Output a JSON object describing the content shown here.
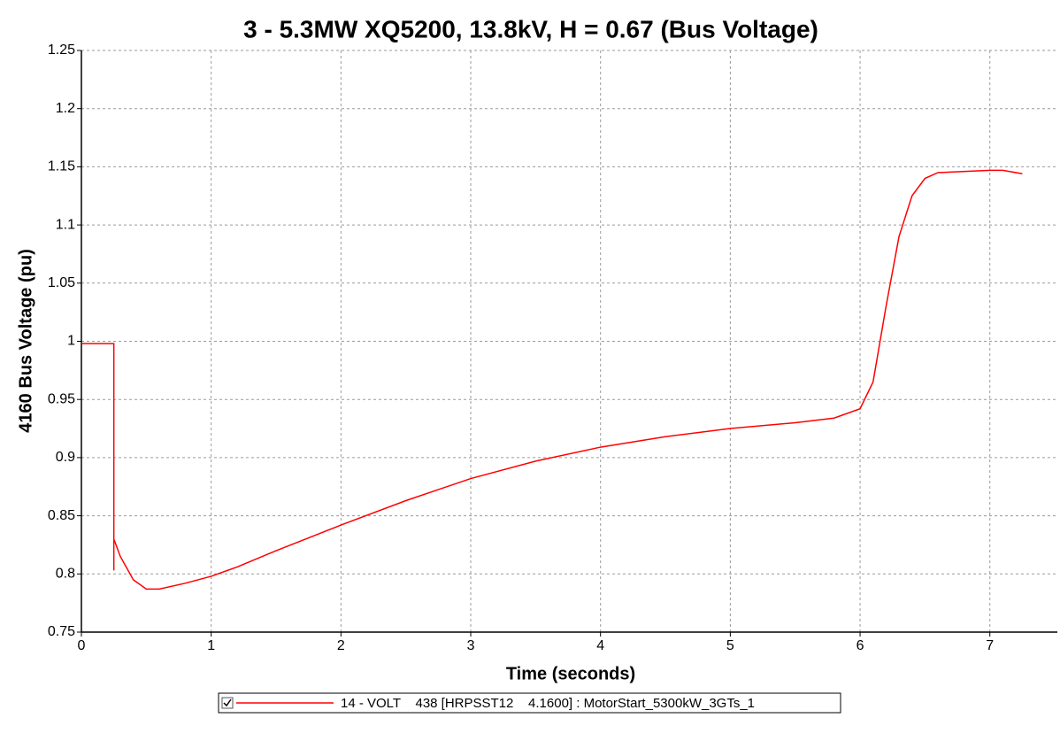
{
  "chart_data": {
    "type": "line",
    "title": "3 - 5.3MW XQ5200, 13.8kV, H = 0.67 (Bus Voltage)",
    "x_label": "Time (seconds)",
    "y_label": "4160 Bus Voltage (pu)",
    "x": [
      0,
      0.25,
      0.25,
      0.25,
      0.3,
      0.4,
      0.5,
      0.6,
      0.8,
      1.0,
      1.2,
      1.5,
      2,
      2.5,
      3,
      3.5,
      4,
      4.5,
      5,
      5.5,
      5.8,
      6.0,
      6.1,
      6.2,
      6.3,
      6.4,
      6.5,
      6.6,
      7.0,
      7.1,
      7.25
    ],
    "series": [
      {
        "name": "14 - VOLT    438 [HRPSST12    4.1600] : MotorStart_5300kW_3GTs_1",
        "color": "#ff0000",
        "values": [
          0.998,
          0.998,
          0.803,
          0.83,
          0.815,
          0.795,
          0.787,
          0.787,
          0.792,
          0.798,
          0.806,
          0.82,
          0.842,
          0.863,
          0.882,
          0.897,
          0.909,
          0.918,
          0.925,
          0.93,
          0.934,
          0.942,
          0.965,
          1.03,
          1.09,
          1.125,
          1.14,
          1.145,
          1.147,
          1.147,
          1.144
        ]
      }
    ],
    "xlim": [
      0,
      7.52
    ],
    "xticks": [
      0,
      1,
      2,
      3,
      4,
      5,
      6,
      7
    ],
    "ylim": [
      0.75,
      1.25
    ],
    "yticks": [
      0.75,
      0.8,
      0.85,
      0.9,
      0.95,
      1,
      1.05,
      1.1,
      1.15,
      1.2,
      1.25
    ],
    "grid": true,
    "legend": "bottom"
  }
}
